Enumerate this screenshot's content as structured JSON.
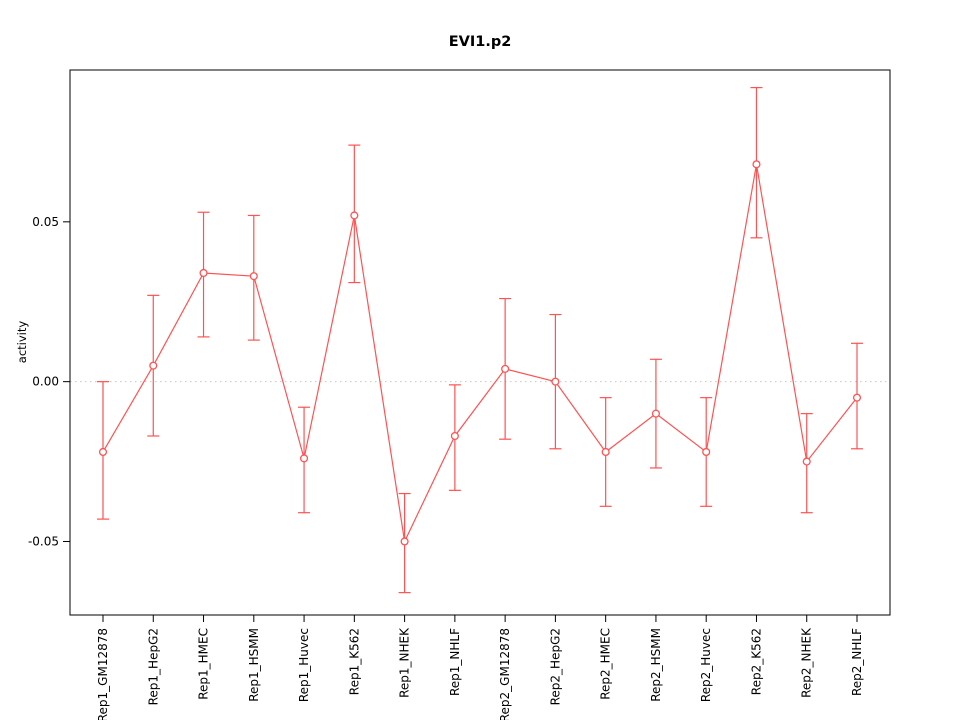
{
  "chart_data": {
    "type": "line",
    "title": "EVI1.p2",
    "xlabel": "",
    "ylabel": "activity",
    "ylim": [
      -0.073,
      0.0975
    ],
    "yticks": [
      -0.05,
      0.0,
      0.05
    ],
    "ytick_labels": [
      "-0.05",
      "0.00",
      "0.05"
    ],
    "grid": "dotted-gray-line-at-zero",
    "legend": "none",
    "error_bars": true,
    "series_color": "#ff5252",
    "zero_line_color": "#c6c6c6",
    "categories": [
      "Rep1_GM12878",
      "Rep1_HepG2",
      "Rep1_HMEC",
      "Rep1_HSMM",
      "Rep1_Huvec",
      "Rep1_K562",
      "Rep1_NHEK",
      "Rep1_NHLF",
      "Rep2_GM12878",
      "Rep2_HepG2",
      "Rep2_HMEC",
      "Rep2_HSMM",
      "Rep2_Huvec",
      "Rep2_K562",
      "Rep2_NHEK",
      "Rep2_NHLF"
    ],
    "values": [
      -0.022,
      0.005,
      0.034,
      0.033,
      -0.024,
      0.052,
      -0.05,
      -0.017,
      0.004,
      0.0,
      -0.022,
      -0.01,
      -0.022,
      0.068,
      -0.025,
      -0.005
    ],
    "error_low": [
      -0.043,
      -0.017,
      0.014,
      0.013,
      -0.041,
      0.031,
      -0.066,
      -0.034,
      -0.018,
      -0.021,
      -0.039,
      -0.027,
      -0.039,
      0.045,
      -0.041,
      -0.021
    ],
    "error_high": [
      0.0,
      0.027,
      0.053,
      0.052,
      -0.008,
      0.074,
      -0.035,
      -0.001,
      0.026,
      0.021,
      -0.005,
      0.007,
      -0.005,
      0.092,
      -0.01,
      0.012
    ]
  }
}
